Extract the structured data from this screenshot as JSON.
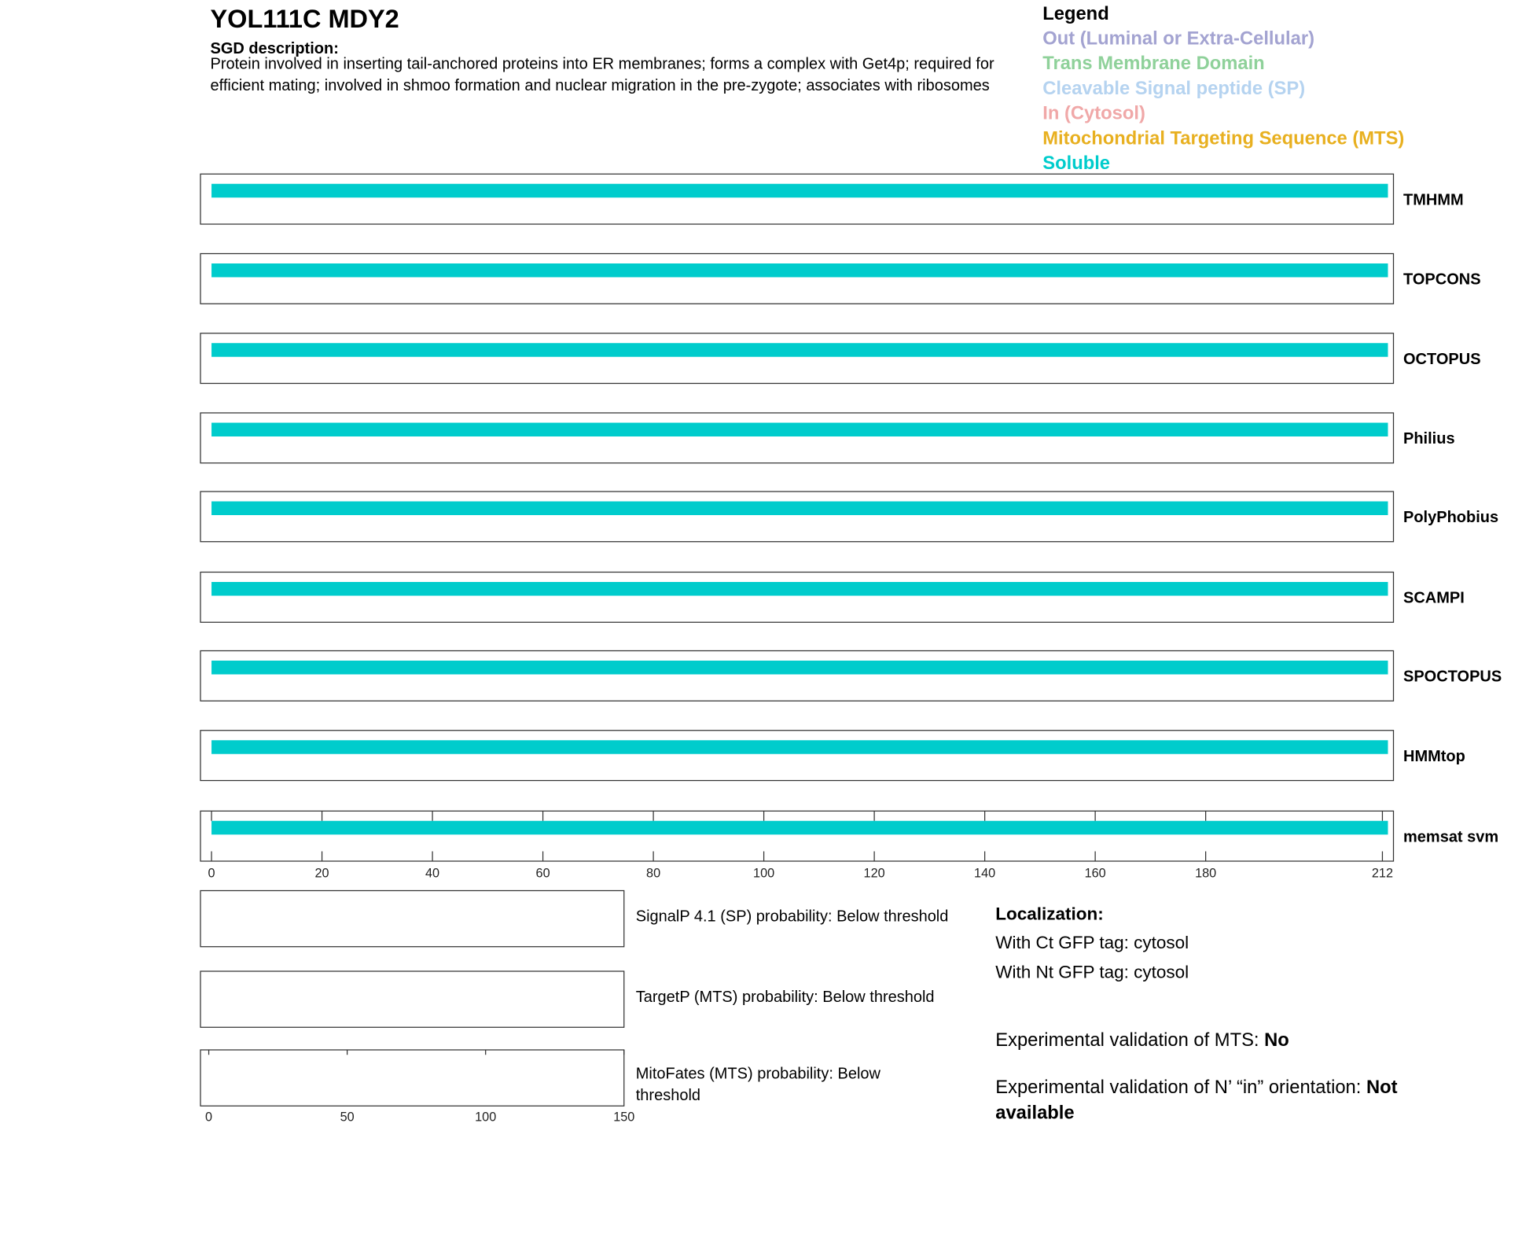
{
  "header": {
    "title": "YOL111C  MDY2",
    "description_heading": "SGD description:",
    "description": "Protein involved in inserting tail-anchored proteins into ER membranes; forms a complex with Get4p; required for efficient mating; involved in shmoo formation and nuclear migration in the pre-zygote; associates with ribosomes"
  },
  "legend": {
    "title": "Legend",
    "items": [
      {
        "label": "Out (Luminal or Extra-Cellular)",
        "color": "#a3a3d1"
      },
      {
        "label": "Trans Membrane Domain",
        "color": "#8fd19a"
      },
      {
        "label": "Cleavable Signal peptide (SP)",
        "color": "#b5d3f0"
      },
      {
        "label": "In (Cytosol)",
        "color": "#f0a8a8"
      },
      {
        "label": "Mitochondrial Targeting Sequence (MTS)",
        "color": "#e8b020"
      },
      {
        "label": "Soluble",
        "color": "#00cccc"
      }
    ]
  },
  "topology": {
    "xlim": [
      -2,
      214
    ],
    "xticks": [
      0,
      20,
      40,
      60,
      80,
      100,
      120,
      140,
      160,
      180,
      212
    ],
    "tracks": [
      {
        "name": "TMHMM",
        "segments": [
          {
            "start": 0,
            "end": 213,
            "color": "#00cccc"
          }
        ]
      },
      {
        "name": "TOPCONS",
        "segments": [
          {
            "start": 0,
            "end": 213,
            "color": "#00cccc"
          }
        ]
      },
      {
        "name": "OCTOPUS",
        "segments": [
          {
            "start": 0,
            "end": 213,
            "color": "#00cccc"
          }
        ]
      },
      {
        "name": "Philius",
        "segments": [
          {
            "start": 0,
            "end": 213,
            "color": "#00cccc"
          }
        ]
      },
      {
        "name": "PolyPhobius",
        "segments": [
          {
            "start": 0,
            "end": 213,
            "color": "#00cccc"
          }
        ]
      },
      {
        "name": "SCAMPI",
        "segments": [
          {
            "start": 0,
            "end": 213,
            "color": "#00cccc"
          }
        ]
      },
      {
        "name": "SPOCTOPUS",
        "segments": [
          {
            "start": 0,
            "end": 213,
            "color": "#00cccc"
          }
        ]
      },
      {
        "name": "HMMtop",
        "segments": [
          {
            "start": 0,
            "end": 213,
            "color": "#00cccc"
          }
        ]
      },
      {
        "name": "memsat svm",
        "segments": [
          {
            "start": 0,
            "end": 213,
            "color": "#00cccc"
          }
        ]
      }
    ]
  },
  "probabilities": {
    "xlim": [
      -3,
      150
    ],
    "xticks": [
      0,
      50,
      100,
      150
    ],
    "panels": [
      {
        "label": "SignalP 4.1 (SP) probability: Below threshold"
      },
      {
        "label": "TargetP (MTS) probability: Below threshold"
      },
      {
        "label": "MitoFates (MTS) probability: Below threshold"
      }
    ]
  },
  "localization": {
    "heading": "Localization:",
    "items": [
      "With Ct GFP tag: cytosol",
      "With Nt GFP tag: cytosol"
    ],
    "validations": [
      {
        "label": "Experimental validation of MTS:",
        "value": "No"
      },
      {
        "label": "Experimental validation of N’ “in” orientation:",
        "value": "Not available"
      }
    ]
  }
}
